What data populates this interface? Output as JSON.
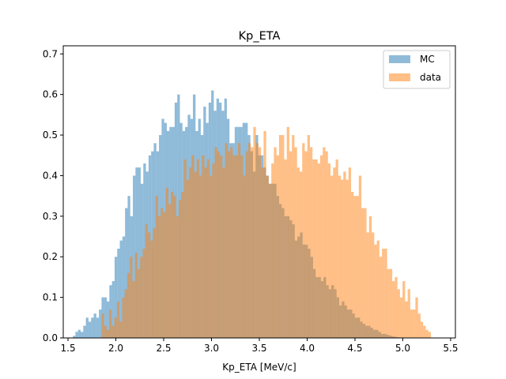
{
  "chart_data": {
    "type": "histogram",
    "title": "Kp_ETA",
    "xlabel": "Kp_ETA [MeV/c]",
    "ylabel": "",
    "xlim": [
      1.45,
      5.55
    ],
    "ylim": [
      0,
      0.72
    ],
    "x_ticks": [
      "1.5",
      "2.0",
      "2.5",
      "3.0",
      "3.5",
      "4.0",
      "4.5",
      "5.0",
      "5.5"
    ],
    "x_tick_values": [
      1.5,
      2.0,
      2.5,
      3.0,
      3.5,
      4.0,
      4.5,
      5.0,
      5.5
    ],
    "y_ticks": [
      "0.0",
      "0.1",
      "0.2",
      "0.3",
      "0.4",
      "0.5",
      "0.6",
      "0.7"
    ],
    "y_tick_values": [
      0.0,
      0.1,
      0.2,
      0.3,
      0.4,
      0.5,
      0.6,
      0.7
    ],
    "grid": false,
    "legend_position": "top-right",
    "series": [
      {
        "name": "MC",
        "color": "#1f77b4",
        "opacity": 0.5,
        "bin_start": 1.55,
        "bin_width": 0.0273,
        "values": [
          0.005,
          0.015,
          0.02,
          0.015,
          0.03,
          0.05,
          0.04,
          0.05,
          0.06,
          0.05,
          0.07,
          0.1,
          0.1,
          0.09,
          0.13,
          0.14,
          0.2,
          0.22,
          0.24,
          0.25,
          0.32,
          0.35,
          0.3,
          0.4,
          0.42,
          0.42,
          0.38,
          0.43,
          0.41,
          0.45,
          0.46,
          0.48,
          0.46,
          0.5,
          0.54,
          0.53,
          0.51,
          0.52,
          0.52,
          0.58,
          0.6,
          0.53,
          0.51,
          0.52,
          0.55,
          0.54,
          0.6,
          0.51,
          0.54,
          0.5,
          0.57,
          0.53,
          0.58,
          0.61,
          0.56,
          0.59,
          0.58,
          0.56,
          0.59,
          0.54,
          0.48,
          0.48,
          0.52,
          0.52,
          0.52,
          0.53,
          0.53,
          0.5,
          0.46,
          0.41,
          0.5,
          0.45,
          0.45,
          0.42,
          0.4,
          0.38,
          0.38,
          0.38,
          0.35,
          0.33,
          0.32,
          0.3,
          0.3,
          0.29,
          0.28,
          0.24,
          0.25,
          0.26,
          0.23,
          0.23,
          0.22,
          0.2,
          0.17,
          0.15,
          0.15,
          0.14,
          0.15,
          0.13,
          0.12,
          0.13,
          0.12,
          0.1,
          0.08,
          0.09,
          0.08,
          0.07,
          0.07,
          0.06,
          0.05,
          0.05,
          0.04,
          0.035,
          0.03,
          0.03,
          0.025,
          0.02,
          0.02,
          0.015,
          0.01,
          0.01,
          0.008,
          0.006,
          0.004,
          0.003,
          0.002,
          0.001,
          0.001,
          0.001
        ]
      },
      {
        "name": "data",
        "color": "#ff7f0e",
        "opacity": 0.5,
        "bin_start": 1.85,
        "bin_width": 0.0269,
        "values": [
          0.06,
          0.03,
          0.02,
          0.07,
          0.03,
          0.05,
          0.09,
          0.04,
          0.1,
          0.12,
          0.16,
          0.2,
          0.14,
          0.21,
          0.17,
          0.2,
          0.22,
          0.28,
          0.26,
          0.24,
          0.27,
          0.35,
          0.3,
          0.32,
          0.31,
          0.37,
          0.33,
          0.36,
          0.35,
          0.3,
          0.34,
          0.36,
          0.44,
          0.39,
          0.42,
          0.45,
          0.41,
          0.44,
          0.4,
          0.45,
          0.42,
          0.44,
          0.4,
          0.43,
          0.47,
          0.46,
          0.45,
          0.42,
          0.48,
          0.46,
          0.47,
          0.45,
          0.45,
          0.48,
          0.45,
          0.4,
          0.46,
          0.48,
          0.47,
          0.52,
          0.48,
          0.47,
          0.42,
          0.51,
          0.4,
          0.38,
          0.43,
          0.47,
          0.45,
          0.5,
          0.5,
          0.44,
          0.52,
          0.46,
          0.5,
          0.47,
          0.42,
          0.41,
          0.48,
          0.46,
          0.5,
          0.47,
          0.44,
          0.44,
          0.43,
          0.45,
          0.47,
          0.46,
          0.43,
          0.4,
          0.42,
          0.44,
          0.4,
          0.39,
          0.41,
          0.39,
          0.42,
          0.36,
          0.35,
          0.35,
          0.4,
          0.32,
          0.32,
          0.26,
          0.3,
          0.26,
          0.23,
          0.24,
          0.2,
          0.22,
          0.22,
          0.17,
          0.17,
          0.14,
          0.15,
          0.12,
          0.1,
          0.14,
          0.09,
          0.12,
          0.07,
          0.07,
          0.1,
          0.06,
          0.04,
          0.03,
          0.02,
          0.015
        ]
      }
    ]
  }
}
